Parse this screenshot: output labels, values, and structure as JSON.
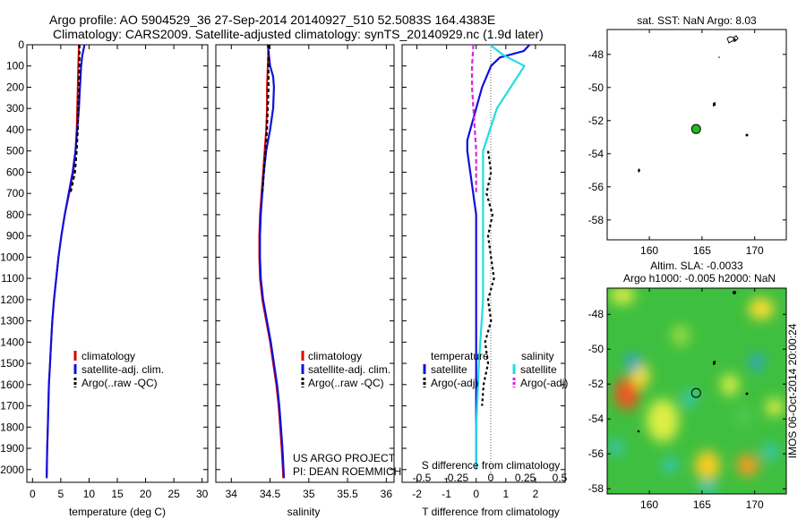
{
  "title": {
    "line1": "Argo profile: AO 5904529_36 27-Sep-2014 20140927_510 52.5083S 164.4383E",
    "line2": "Climatology: CARS2009. Satellite-adjusted climatology: synTS_20140929.nc (1.9d later)"
  },
  "colors": {
    "climatology": "#dd0000",
    "satellite": "#1010dd",
    "argo": "#000000",
    "salinity_sat": "#22dddd",
    "salinity_argo": "#dd22dd"
  },
  "chart_data": [
    {
      "type": "line",
      "xlabel": "temperature (deg C)",
      "xlim": [
        -1,
        31
      ],
      "xticks": [
        0,
        5,
        10,
        15,
        20,
        25,
        30
      ],
      "ylim": [
        2060,
        0
      ],
      "yticks": [
        0,
        100,
        200,
        300,
        400,
        500,
        600,
        700,
        800,
        900,
        1000,
        1100,
        1200,
        1300,
        1400,
        1500,
        1600,
        1700,
        1800,
        1900,
        2000
      ],
      "legend": [
        "climatology",
        "satellite-adj. clim.",
        "Argo(..raw -QC)"
      ],
      "series": [
        {
          "name": "climatology",
          "depth": [
            0,
            100,
            200,
            300,
            400,
            500,
            600,
            700,
            800,
            900,
            1000,
            1100,
            1200,
            1300,
            1400,
            1500,
            1600,
            1700,
            1800,
            1900,
            2040
          ],
          "values": [
            8.2,
            8.1,
            8.0,
            7.9,
            7.8,
            7.6,
            7.2,
            6.5,
            5.7,
            5.1,
            4.6,
            4.2,
            3.8,
            3.5,
            3.3,
            3.1,
            2.9,
            2.8,
            2.7,
            2.6,
            2.5
          ]
        },
        {
          "name": "satellite-adj. clim.",
          "depth": [
            0,
            50,
            100,
            200,
            300,
            400,
            500,
            600,
            700,
            800,
            900,
            1000,
            1100,
            1200,
            1300,
            1400,
            1500,
            1600,
            1700,
            1800,
            1900,
            2040
          ],
          "values": [
            9.2,
            8.8,
            8.6,
            8.4,
            8.2,
            7.9,
            7.6,
            7.1,
            6.4,
            5.7,
            5.1,
            4.6,
            4.2,
            3.8,
            3.5,
            3.3,
            3.1,
            2.9,
            2.8,
            2.7,
            2.6,
            2.5
          ]
        },
        {
          "name": "Argo(..raw -QC)",
          "depth": [
            0,
            100,
            200,
            300,
            400,
            500,
            600,
            700
          ],
          "values": [
            8.3,
            8.3,
            8.2,
            8.1,
            8.0,
            7.8,
            7.5,
            6.7
          ]
        }
      ]
    },
    {
      "type": "line",
      "xlabel": "salinity",
      "xlim": [
        33.8,
        36.1
      ],
      "xticks": [
        34,
        34.5,
        35,
        35.5,
        36
      ],
      "ylim": [
        2060,
        0
      ],
      "legend": [
        "climatology",
        "satellite-adj. clim.",
        "Argo(..raw -QC)"
      ],
      "annotations": [
        "US ARGO PROJECT",
        "PI: DEAN ROEMMICH"
      ],
      "series": [
        {
          "name": "climatology",
          "depth": [
            0,
            100,
            200,
            300,
            400,
            500,
            600,
            700,
            800,
            900,
            1000,
            1100,
            1200,
            1300,
            1400,
            1500,
            1600,
            1700,
            1800,
            1900,
            2040
          ],
          "values": [
            34.48,
            34.47,
            34.46,
            34.46,
            34.45,
            34.43,
            34.41,
            34.39,
            34.37,
            34.36,
            34.36,
            34.37,
            34.4,
            34.45,
            34.5,
            34.54,
            34.58,
            34.61,
            34.63,
            34.65,
            34.67
          ]
        },
        {
          "name": "satellite-adj. clim.",
          "depth": [
            0,
            100,
            150,
            200,
            300,
            400,
            500,
            600,
            700,
            800,
            900,
            1000,
            1100,
            1200,
            1300,
            1400,
            1500,
            1600,
            1700,
            1800,
            1900,
            2040
          ],
          "values": [
            34.47,
            34.5,
            34.54,
            34.55,
            34.54,
            34.5,
            34.45,
            34.42,
            34.4,
            34.38,
            34.37,
            34.37,
            34.38,
            34.41,
            34.46,
            34.51,
            34.55,
            34.59,
            34.62,
            34.64,
            34.66,
            34.68
          ]
        },
        {
          "name": "Argo(..raw -QC)",
          "depth": [
            0,
            100,
            200,
            300,
            400,
            500,
            600,
            700
          ],
          "values": [
            34.48,
            34.48,
            34.48,
            34.47,
            34.46,
            34.44,
            34.42,
            34.4
          ]
        }
      ]
    },
    {
      "type": "line",
      "xlabel": "T difference from climatology",
      "xlim": [
        -2.5,
        3.0
      ],
      "xticks": [
        -2,
        -1,
        0,
        1,
        2
      ],
      "top_xlabel": "S difference from climatology",
      "top_xticks": [
        -0.5,
        -0.25,
        0,
        0.25,
        0.5
      ],
      "ylim": [
        2060,
        0
      ],
      "legend": {
        "temperature": "temperature",
        "salinity": "salinity",
        "sat": "satellite",
        "argo": "Argo(-adj)"
      },
      "series": [
        {
          "name": "satellite",
          "depth": [
            0,
            30,
            60,
            100,
            200,
            300,
            400,
            450,
            500,
            600,
            700,
            800,
            900,
            1000,
            1200,
            1400,
            1600,
            1800,
            2000
          ],
          "values": [
            1.8,
            1.6,
            0.8,
            0.5,
            0.2,
            0.0,
            -0.2,
            -0.3,
            -0.3,
            -0.2,
            -0.1,
            0.0,
            0.0,
            0.0,
            0.0,
            0.0,
            0.0,
            0.0,
            0.0
          ]
        },
        {
          "name": "salinity satellite",
          "depth": [
            0,
            50,
            100,
            150,
            200,
            300,
            400,
            500,
            600,
            800,
            1000,
            1200,
            1500,
            1800,
            2000
          ],
          "values": [
            0.1,
            0.2,
            0.35,
            0.3,
            0.25,
            0.15,
            0.1,
            0.05,
            0.05,
            0.05,
            0.05,
            0.05,
            0.02,
            0.0,
            0.0
          ]
        },
        {
          "name": "salinity Argo",
          "depth": [
            0,
            100,
            200,
            300,
            400,
            500,
            700
          ],
          "values": [
            -0.02,
            -0.03,
            -0.03,
            -0.02,
            -0.01,
            0.0,
            0.0
          ]
        },
        {
          "name": "Argo(-adj)",
          "depth": [
            500,
            600,
            700,
            800,
            900,
            1000,
            1100,
            1200,
            1300,
            1400,
            1500,
            1600,
            1700
          ],
          "values": [
            0.4,
            0.5,
            0.35,
            0.55,
            0.4,
            0.5,
            0.6,
            0.4,
            0.5,
            0.3,
            0.4,
            0.25,
            0.2
          ]
        }
      ]
    },
    {
      "type": "scatter",
      "title": "sat. SST: NaN Argo: 8.03",
      "xlim": [
        156,
        173
      ],
      "xticks": [
        160,
        165,
        170
      ],
      "ylim": [
        -59.2,
        -46.5
      ],
      "yticks": [
        -48,
        -50,
        -52,
        -54,
        -56,
        -58
      ],
      "float_position": {
        "lon": 164.4383,
        "lat": -52.5083
      }
    },
    {
      "type": "heatmap",
      "title": "Altim. SLA: -0.0033",
      "subtitle": "Argo h1000: -0.005 h2000: NaN",
      "xlim": [
        156,
        173
      ],
      "xticks": [
        160,
        165,
        170
      ],
      "ylim": [
        -58.3,
        -46.5
      ],
      "yticks": [
        -48,
        -50,
        -52,
        -54,
        -56,
        -58
      ],
      "float_position": {
        "lon": 164.4383,
        "lat": -52.5083
      },
      "side_label": "IMOS 06-Oct-2014 20:00:24"
    }
  ]
}
